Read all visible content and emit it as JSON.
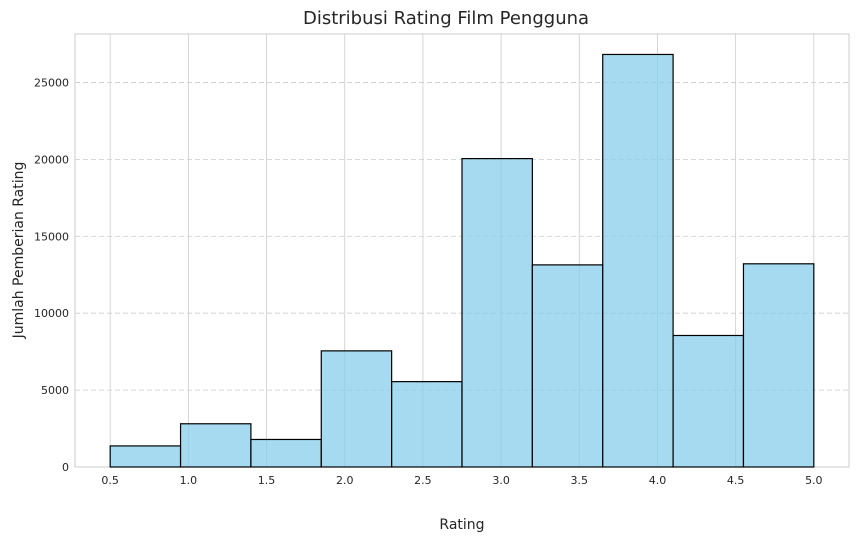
{
  "chart_data": {
    "type": "bar",
    "title": "Distribusi Rating Film Pengguna",
    "xlabel": "Rating",
    "ylabel": "Jumlah Pemberian Rating",
    "bins": [
      {
        "x0": 0.5,
        "x1": 0.95,
        "value": 1370
      },
      {
        "x0": 0.95,
        "x1": 1.4,
        "value": 2810
      },
      {
        "x0": 1.4,
        "x1": 1.85,
        "value": 1790
      },
      {
        "x0": 1.85,
        "x1": 2.3,
        "value": 7550
      },
      {
        "x0": 2.3,
        "x1": 2.75,
        "value": 5550
      },
      {
        "x0": 2.75,
        "x1": 3.2,
        "value": 20050
      },
      {
        "x0": 3.2,
        "x1": 3.65,
        "value": 13140
      },
      {
        "x0": 3.65,
        "x1": 4.1,
        "value": 26820
      },
      {
        "x0": 4.1,
        "x1": 4.55,
        "value": 8550
      },
      {
        "x0": 4.55,
        "x1": 5.0,
        "value": 13210
      }
    ],
    "xlim": [
      0.275,
      5.225
    ],
    "ylim": [
      0,
      28150
    ],
    "xticks": [
      "0.5",
      "1.0",
      "1.5",
      "2.0",
      "2.5",
      "3.0",
      "3.5",
      "4.0",
      "4.5",
      "5.0"
    ],
    "yticks": [
      "0",
      "5000",
      "10000",
      "15000",
      "20000",
      "25000"
    ],
    "grid": true,
    "colors": {
      "bar_fill": "#87ceeb",
      "bar_edge": "#000000",
      "grid": "#cccccc",
      "frame": "#cccccc",
      "text": "#262626"
    }
  }
}
